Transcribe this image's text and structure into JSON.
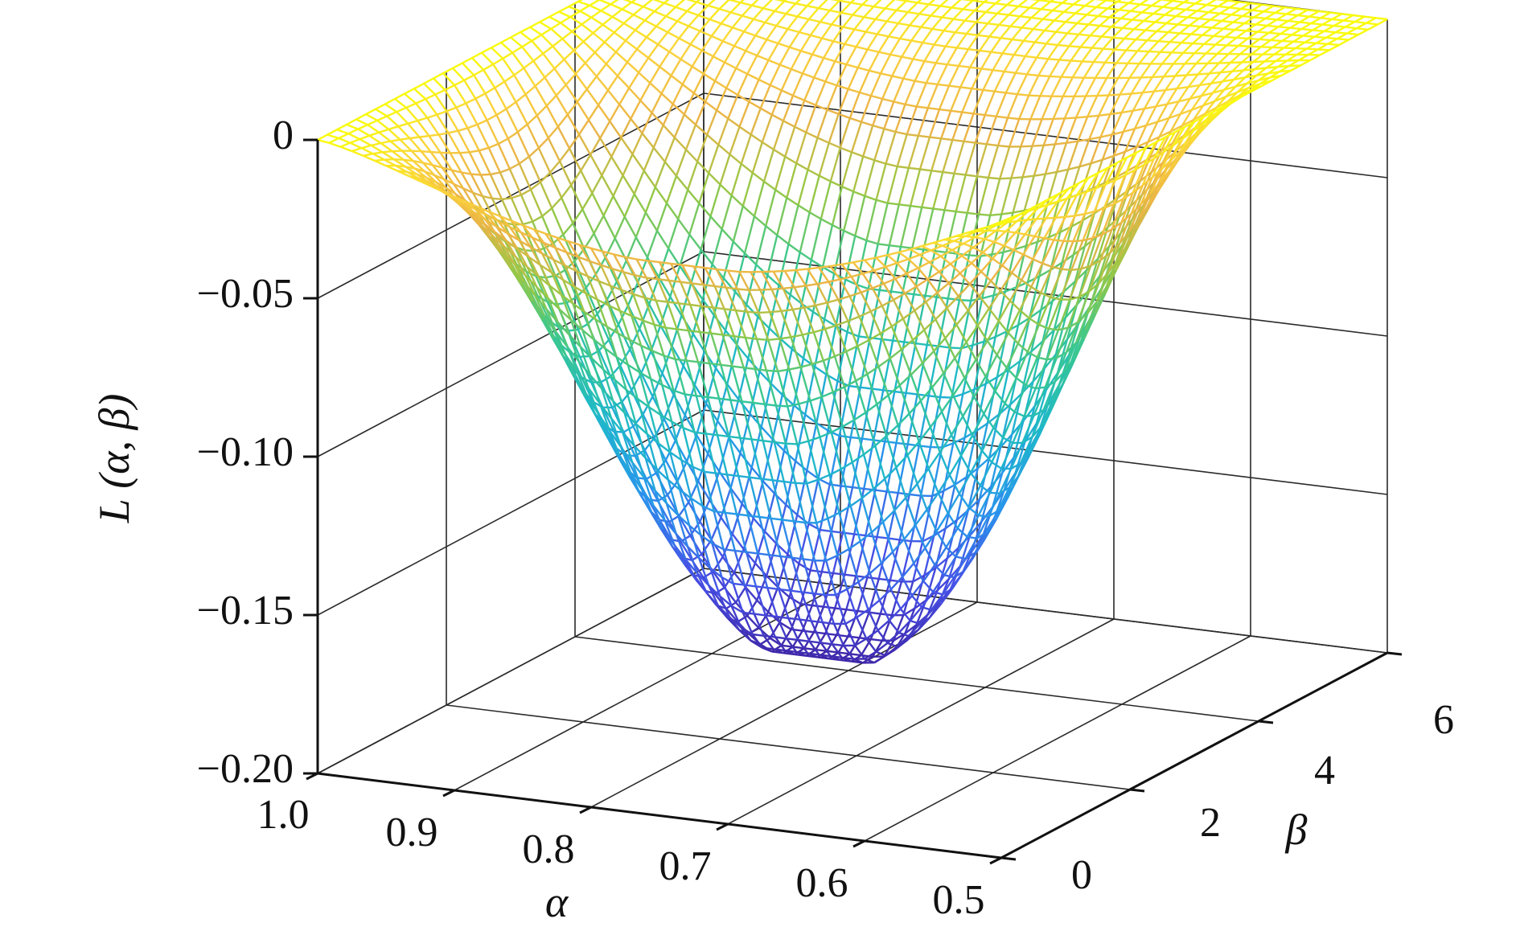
{
  "chart_data": {
    "type": "surface",
    "title": "",
    "xlabel": "α",
    "ylabel": "β",
    "zlabel": "L (α, β)",
    "xlim": [
      0.5,
      1.0
    ],
    "ylim": [
      0,
      6
    ],
    "zlim": [
      -0.2,
      0
    ],
    "x_ticks": [
      "1.0",
      "0.9",
      "0.8",
      "0.7",
      "0.6",
      "0.5"
    ],
    "y_ticks": [
      "0",
      "2",
      "4",
      "6"
    ],
    "z_ticks": [
      "0",
      "−0.05",
      "−0.10",
      "−0.15",
      "−0.20"
    ],
    "grid": true,
    "colormap": "parula",
    "surface_samples": {
      "description_points": [
        {
          "alpha": 1.0,
          "beta": 0,
          "L": 0
        },
        {
          "alpha": 0.5,
          "beta": 0,
          "L": -0.003
        },
        {
          "alpha": 1.0,
          "beta": 6,
          "L": 0
        },
        {
          "alpha": 0.5,
          "beta": 6,
          "L": 0
        },
        {
          "alpha": 0.78,
          "beta": 2.2,
          "L": -0.17
        }
      ]
    },
    "colors": {
      "low": "#3e26a8",
      "mid": "#1fb6c6",
      "high": "#f9fb0e"
    }
  }
}
